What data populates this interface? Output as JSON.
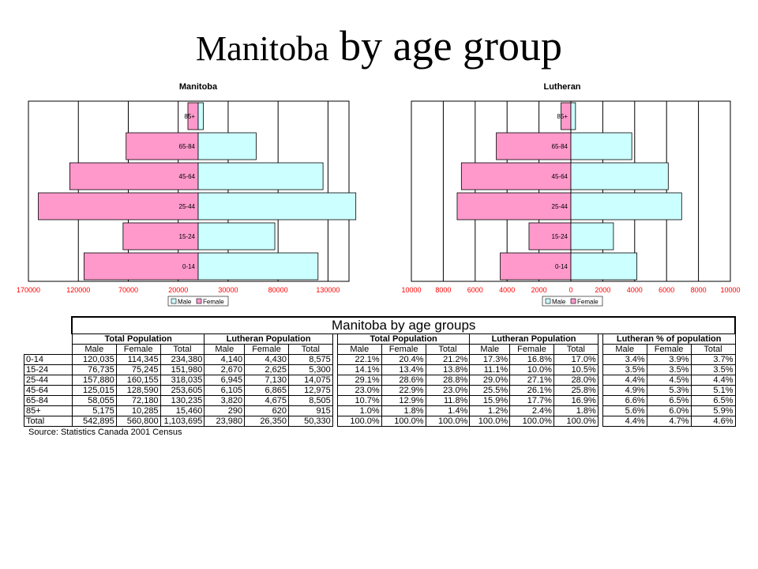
{
  "slide": {
    "title_part1": "Manitoba",
    "title_part2": " by age group"
  },
  "chart_data": [
    {
      "type": "bar",
      "orientation": "horizontal-population-pyramid",
      "title": "Manitoba",
      "categories": [
        "85+",
        "65-84",
        "45-64",
        "25-44",
        "15-24",
        "0-14"
      ],
      "series": [
        {
          "name": "Male",
          "values": [
            5175,
            58055,
            125015,
            157880,
            76735,
            120035
          ]
        },
        {
          "name": "Female",
          "values": [
            10285,
            72180,
            128590,
            160155,
            75245,
            114345
          ]
        }
      ],
      "x_ticks": [
        "170000",
        "120000",
        "70000",
        "20000",
        "30000",
        "80000",
        "130000"
      ],
      "xlim_left": [
        0,
        170000
      ],
      "xlim_right": [
        0,
        170000
      ],
      "grid": true,
      "legend": "bottom",
      "colors": {
        "male": "#ccffff",
        "female": "#ff99cc",
        "tick": "#ff0000"
      }
    },
    {
      "type": "bar",
      "orientation": "horizontal-population-pyramid",
      "title": "Lutheran",
      "categories": [
        "85+",
        "65-84",
        "45-64",
        "25-44",
        "15-24",
        "0-14"
      ],
      "series": [
        {
          "name": "Male",
          "values": [
            290,
            3820,
            6105,
            6945,
            2670,
            4140
          ]
        },
        {
          "name": "Female",
          "values": [
            620,
            4675,
            6865,
            7130,
            2625,
            4430
          ]
        }
      ],
      "x_ticks": [
        "10000",
        "8000",
        "6000",
        "4000",
        "2000",
        "0",
        "2000",
        "4000",
        "6000",
        "8000",
        "10000"
      ],
      "xlim_left": [
        0,
        10000
      ],
      "xlim_right": [
        0,
        10000
      ],
      "grid": true,
      "legend": "bottom",
      "colors": {
        "male": "#ccffff",
        "female": "#ff99cc",
        "tick": "#ff0000"
      }
    }
  ],
  "table": {
    "title": "Manitoba by age groups",
    "group_headers": [
      "Total Population",
      "Lutheran Population",
      "Total Population",
      "Lutheran Population",
      "Lutheran % of population"
    ],
    "sub_headers": [
      "Male",
      "Female",
      "Total"
    ],
    "rows": [
      {
        "label": "0-14",
        "cells": [
          "120,035",
          "114,345",
          "234,380",
          "4,140",
          "4,430",
          "8,575",
          "22.1%",
          "20.4%",
          "21.2%",
          "17.3%",
          "16.8%",
          "17.0%",
          "3.4%",
          "3.9%",
          "3.7%"
        ]
      },
      {
        "label": "15-24",
        "cells": [
          "76,735",
          "75,245",
          "151,980",
          "2,670",
          "2,625",
          "5,300",
          "14.1%",
          "13.4%",
          "13.8%",
          "11.1%",
          "10.0%",
          "10.5%",
          "3.5%",
          "3.5%",
          "3.5%"
        ]
      },
      {
        "label": "25-44",
        "cells": [
          "157,880",
          "160,155",
          "318,035",
          "6,945",
          "7,130",
          "14,075",
          "29.1%",
          "28.6%",
          "28.8%",
          "29.0%",
          "27.1%",
          "28.0%",
          "4.4%",
          "4.5%",
          "4.4%"
        ]
      },
      {
        "label": "45-64",
        "cells": [
          "125,015",
          "128,590",
          "253,605",
          "6,105",
          "6,865",
          "12,975",
          "23.0%",
          "22.9%",
          "23.0%",
          "25.5%",
          "26.1%",
          "25.8%",
          "4.9%",
          "5.3%",
          "5.1%"
        ]
      },
      {
        "label": "65-84",
        "cells": [
          "58,055",
          "72,180",
          "130,235",
          "3,820",
          "4,675",
          "8,505",
          "10.7%",
          "12.9%",
          "11.8%",
          "15.9%",
          "17.7%",
          "16.9%",
          "6.6%",
          "6.5%",
          "6.5%"
        ]
      },
      {
        "label": "85+",
        "cells": [
          "5,175",
          "10,285",
          "15,460",
          "290",
          "620",
          "915",
          "1.0%",
          "1.8%",
          "1.4%",
          "1.2%",
          "2.4%",
          "1.8%",
          "5.6%",
          "6.0%",
          "5.9%"
        ]
      },
      {
        "label": "Total",
        "cells": [
          "542,895",
          "560,800",
          "1,103,695",
          "23,980",
          "26,350",
          "50,330",
          "100.0%",
          "100.0%",
          "100.0%",
          "100.0%",
          "100.0%",
          "100.0%",
          "4.4%",
          "4.7%",
          "4.6%"
        ]
      }
    ],
    "source": "Source: Statistics Canada 2001 Census"
  }
}
